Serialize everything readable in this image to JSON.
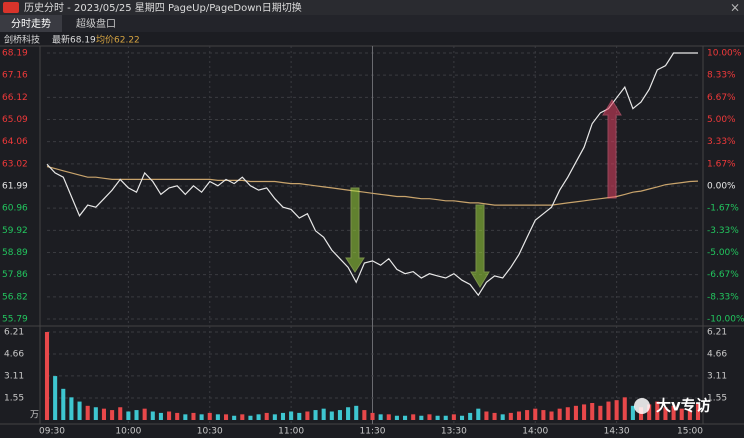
{
  "window": {
    "title": "历史分时 - 2023/05/25 星期四 PageUp/PageDown日期切换",
    "tabs": [
      "分时走势",
      "超级盘口"
    ],
    "stock": "剑桥科技",
    "latest": "最新68.19",
    "average": "均价62.22",
    "close": "×"
  },
  "watermark": "大v专访",
  "chart_data": [
    {
      "type": "line",
      "categories": [
        "09:30",
        null,
        null,
        null,
        null,
        null,
        null,
        null,
        null,
        null,
        "10:00",
        null,
        null,
        null,
        null,
        null,
        null,
        null,
        null,
        null,
        "10:30",
        null,
        null,
        null,
        null,
        null,
        null,
        null,
        null,
        null,
        "11:00",
        null,
        null,
        null,
        null,
        null,
        null,
        null,
        null,
        null,
        "11:30",
        null,
        null,
        null,
        null,
        null,
        null,
        null,
        null,
        null,
        "13:30",
        null,
        null,
        null,
        null,
        null,
        null,
        null,
        null,
        null,
        "14:00",
        null,
        null,
        null,
        null,
        null,
        null,
        null,
        null,
        null,
        "14:30",
        null,
        null,
        null,
        null,
        null,
        null,
        null,
        null,
        null,
        "15:00"
      ],
      "series": [
        {
          "name": "price",
          "color": "#e8e8e8",
          "values": [
            63.0,
            62.6,
            62.4,
            61.5,
            60.6,
            61.1,
            61.0,
            61.4,
            61.8,
            62.3,
            61.9,
            61.7,
            62.6,
            62.2,
            61.6,
            61.9,
            62.0,
            61.6,
            62.0,
            61.7,
            62.2,
            62.0,
            62.3,
            62.1,
            62.4,
            62.0,
            61.8,
            61.9,
            61.4,
            61.0,
            60.9,
            60.5,
            60.7,
            59.9,
            59.6,
            59.0,
            58.6,
            58.2,
            57.5,
            58.4,
            58.5,
            58.3,
            58.6,
            58.1,
            57.9,
            58.0,
            57.7,
            57.9,
            57.8,
            57.7,
            57.9,
            57.6,
            57.4,
            56.9,
            57.5,
            57.8,
            57.7,
            58.2,
            58.8,
            59.6,
            60.4,
            60.7,
            61.0,
            61.8,
            62.4,
            63.1,
            63.8,
            64.9,
            65.4,
            65.6,
            66.1,
            66.6,
            65.6,
            65.9,
            66.5,
            67.4,
            67.6,
            68.19,
            68.19,
            68.19,
            68.19
          ]
        },
        {
          "name": "average",
          "color": "#c9a46c",
          "values": [
            62.9,
            62.8,
            62.7,
            62.6,
            62.5,
            62.4,
            62.4,
            62.35,
            62.3,
            62.3,
            62.3,
            62.3,
            62.3,
            62.3,
            62.3,
            62.3,
            62.3,
            62.3,
            62.3,
            62.3,
            62.3,
            62.25,
            62.25,
            62.25,
            62.25,
            62.2,
            62.2,
            62.2,
            62.2,
            62.15,
            62.1,
            62.1,
            62.05,
            62.0,
            61.95,
            61.9,
            61.85,
            61.8,
            61.75,
            61.7,
            61.65,
            61.6,
            61.55,
            61.5,
            61.5,
            61.45,
            61.4,
            61.4,
            61.35,
            61.3,
            61.3,
            61.25,
            61.2,
            61.2,
            61.15,
            61.1,
            61.1,
            61.1,
            61.1,
            61.1,
            61.1,
            61.1,
            61.1,
            61.15,
            61.2,
            61.25,
            61.3,
            61.35,
            61.4,
            61.45,
            61.5,
            61.6,
            61.7,
            61.75,
            61.85,
            61.95,
            62.05,
            62.1,
            62.15,
            62.2,
            62.22
          ]
        }
      ],
      "ylim": [
        55.79,
        68.19
      ],
      "yticks": [
        68.19,
        67.16,
        66.12,
        65.09,
        64.06,
        63.02,
        61.99,
        60.96,
        59.92,
        58.89,
        57.86,
        56.82,
        55.79
      ],
      "y2lim": [
        -10,
        10
      ],
      "y2ticks": [
        {
          "value": 10,
          "label": "10.00%"
        },
        {
          "value": 8.33,
          "label": "8.33%"
        },
        {
          "value": 6.67,
          "label": "6.67%"
        },
        {
          "value": 5,
          "label": "5.00%"
        },
        {
          "value": 3.33,
          "label": "3.33%"
        },
        {
          "value": 1.67,
          "label": "1.67%"
        },
        {
          "value": 0,
          "label": "0.00%"
        },
        {
          "value": -1.67,
          "label": "-1.67%"
        },
        {
          "value": -3.33,
          "label": "-3.33%"
        },
        {
          "value": -5,
          "label": "-5.00%"
        },
        {
          "value": -6.67,
          "label": "-6.67%"
        },
        {
          "value": -8.33,
          "label": "-8.33%"
        },
        {
          "value": -10,
          "label": "-10.00%"
        }
      ],
      "up_color": "#f0393a",
      "down_color": "#22c55e",
      "grid": true
    },
    {
      "type": "bar",
      "unit": "万",
      "values": [
        6.21,
        3.1,
        2.2,
        1.6,
        1.3,
        1.0,
        0.9,
        0.8,
        0.7,
        0.9,
        0.6,
        0.7,
        0.8,
        0.6,
        0.5,
        0.6,
        0.5,
        0.4,
        0.5,
        0.4,
        0.5,
        0.4,
        0.4,
        0.3,
        0.4,
        0.3,
        0.4,
        0.5,
        0.4,
        0.5,
        0.6,
        0.5,
        0.6,
        0.7,
        0.8,
        0.6,
        0.7,
        0.9,
        1.0,
        0.7,
        0.5,
        0.4,
        0.4,
        0.3,
        0.3,
        0.4,
        0.3,
        0.4,
        0.3,
        0.3,
        0.4,
        0.3,
        0.5,
        0.8,
        0.6,
        0.5,
        0.4,
        0.5,
        0.6,
        0.7,
        0.8,
        0.7,
        0.6,
        0.8,
        0.9,
        1.0,
        1.1,
        1.2,
        1.0,
        1.3,
        1.4,
        1.6,
        1.0,
        0.9,
        1.1,
        1.3,
        0.9,
        1.0,
        0.8,
        0.7,
        1.2
      ],
      "ylim": [
        0,
        6.21
      ],
      "yticks": [
        6.21,
        4.66,
        3.11,
        1.55
      ],
      "up_color": "#e8484a",
      "down_color": "#3ec6d0"
    }
  ]
}
